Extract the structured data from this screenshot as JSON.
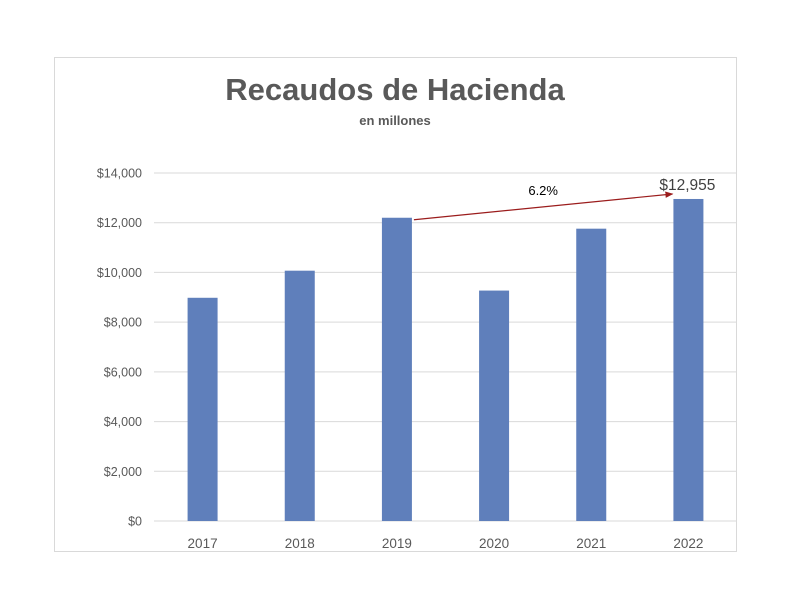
{
  "chart_data": {
    "type": "bar",
    "title": "Recaudos de Hacienda",
    "subtitle": "en millones",
    "categories": [
      "2017",
      "2018",
      "2019",
      "2020",
      "2021",
      "2022"
    ],
    "values": [
      8980,
      10070,
      12200,
      9270,
      11760,
      12955
    ],
    "ylim": [
      0,
      14000
    ],
    "yticks": [
      0,
      2000,
      4000,
      6000,
      8000,
      10000,
      12000,
      14000
    ],
    "ytick_labels": [
      "$0",
      "$2,000",
      "$4,000",
      "$6,000",
      "$8,000",
      "$10,000",
      "$12,000",
      "$14,000"
    ],
    "grid": true,
    "legend": "none",
    "data_labels": [
      {
        "category": "2022",
        "text": "$12,955"
      }
    ],
    "annotations": [
      {
        "text": "6.2%",
        "from_category": "2019",
        "to_category": "2022",
        "type": "arrow"
      }
    ],
    "colors": {
      "bar": "#5f7fbb",
      "grid": "#d9d9d9",
      "arrow": "#9b1c1c",
      "text": "#595959"
    }
  }
}
